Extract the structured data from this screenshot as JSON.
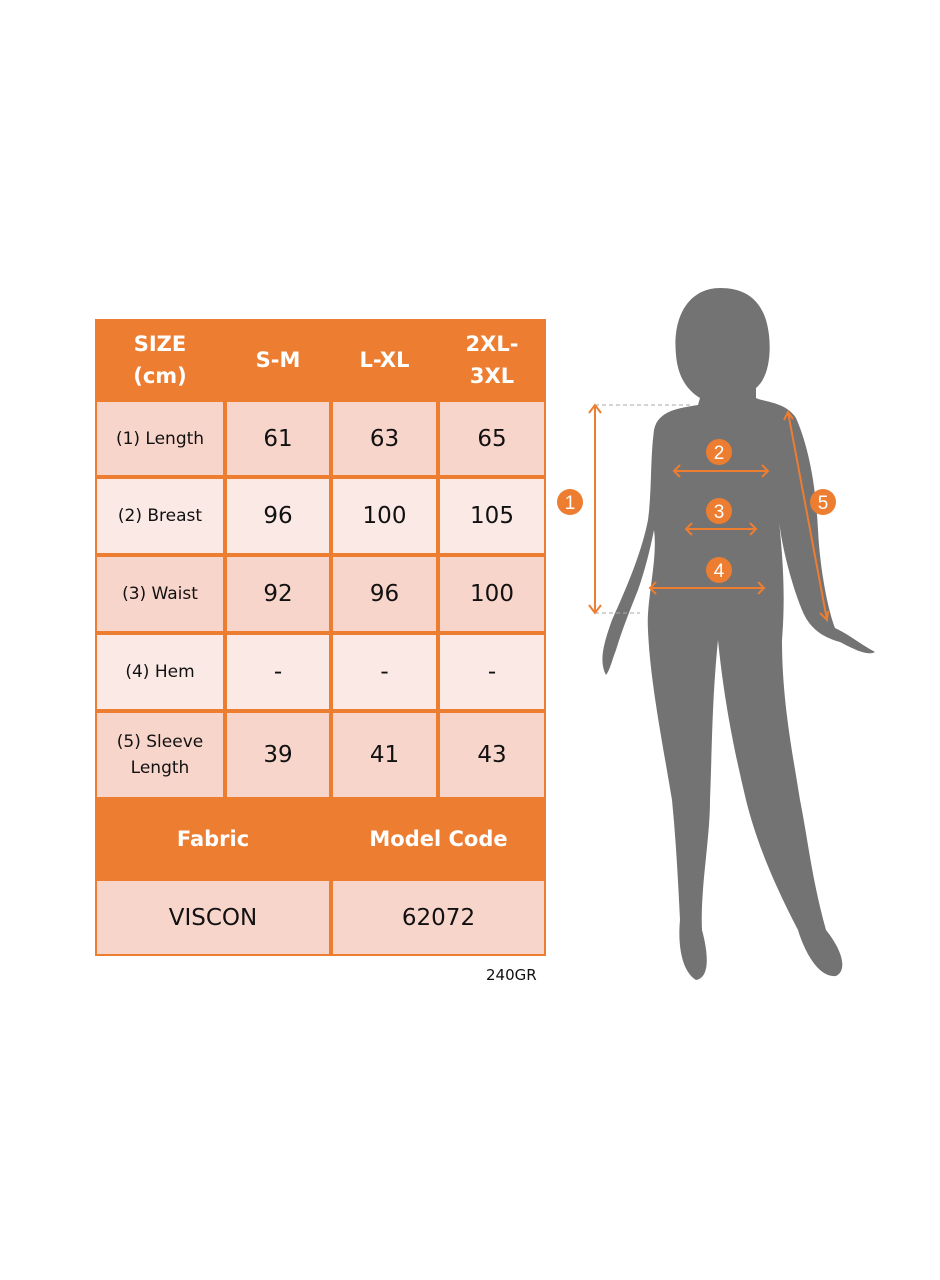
{
  "table": {
    "headers": [
      "SIZE\n(cm)",
      "S-M",
      "L-XL",
      "2XL-\n3XL"
    ],
    "rows": [
      {
        "label": "(1) Length",
        "values": [
          "61",
          "63",
          "65"
        ]
      },
      {
        "label": "(2) Breast",
        "values": [
          "96",
          "100",
          "105"
        ]
      },
      {
        "label": "(3) Waist",
        "values": [
          "92",
          "96",
          "100"
        ]
      },
      {
        "label": "(4) Hem",
        "values": [
          "-",
          "-",
          "-"
        ]
      },
      {
        "label": "(5) Sleeve\nLength",
        "values": [
          "39",
          "41",
          "43"
        ]
      }
    ],
    "info_headers": [
      "Fabric",
      "Model Code"
    ],
    "info_values": [
      "VISCON",
      "62072"
    ]
  },
  "note": "240GR",
  "figure": {
    "markers": [
      "1",
      "2",
      "3",
      "4",
      "5"
    ],
    "accent_color": "#ED7D31",
    "silhouette_color": "#737373"
  }
}
